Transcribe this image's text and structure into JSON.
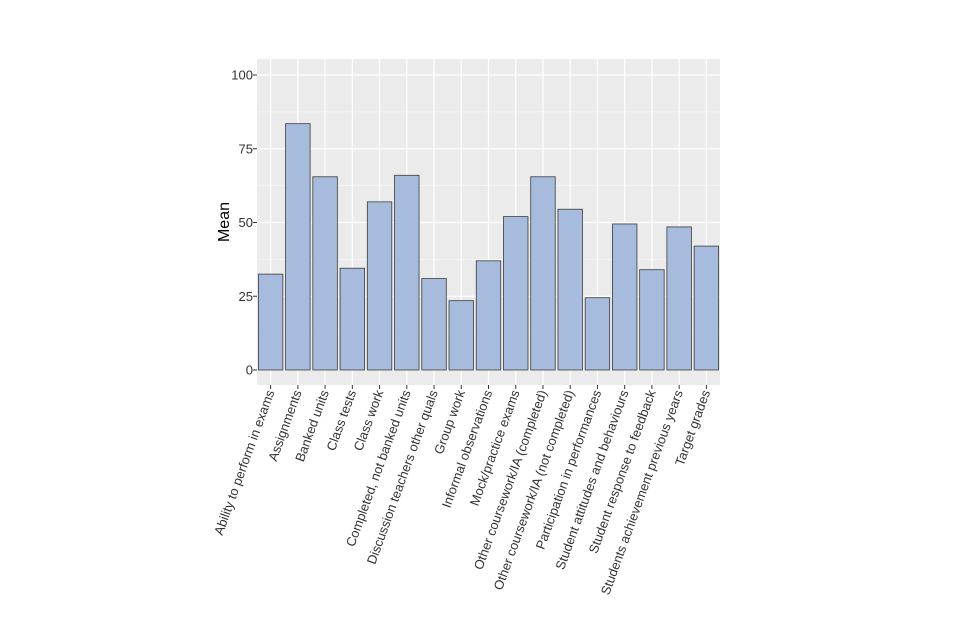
{
  "chart_data": {
    "type": "bar",
    "ylabel": "Mean",
    "xlabel": "",
    "ylim": [
      0,
      105
    ],
    "yticks": [
      "0",
      "25",
      "50",
      "75",
      "100"
    ],
    "grid": true,
    "colors": {
      "panel": "#EBEBEB",
      "grid": "#FFFFFF",
      "bar_fill": "#A7BCDC",
      "bar_stroke": "#3B3B3B"
    },
    "categories": [
      "Ability to perform in exams",
      "Assignments",
      "Banked units",
      "Class tests",
      "Class work",
      "Completed, not banked units",
      "Discussion teachers other quals",
      "Group work",
      "Informal observations",
      "Mock/practice exams",
      "Other coursework/IA (completed)",
      "Other coursework/IA (not completed)",
      "Participation in performances",
      "Student attitudes and behaviours",
      "Student response to feedback",
      "Students achievement previous years",
      "Target grades"
    ],
    "values": [
      32.5,
      83.5,
      65.5,
      34.5,
      57,
      66,
      31,
      23.5,
      37,
      52,
      65.5,
      54.5,
      24.5,
      49.5,
      34,
      48.5,
      42
    ]
  }
}
